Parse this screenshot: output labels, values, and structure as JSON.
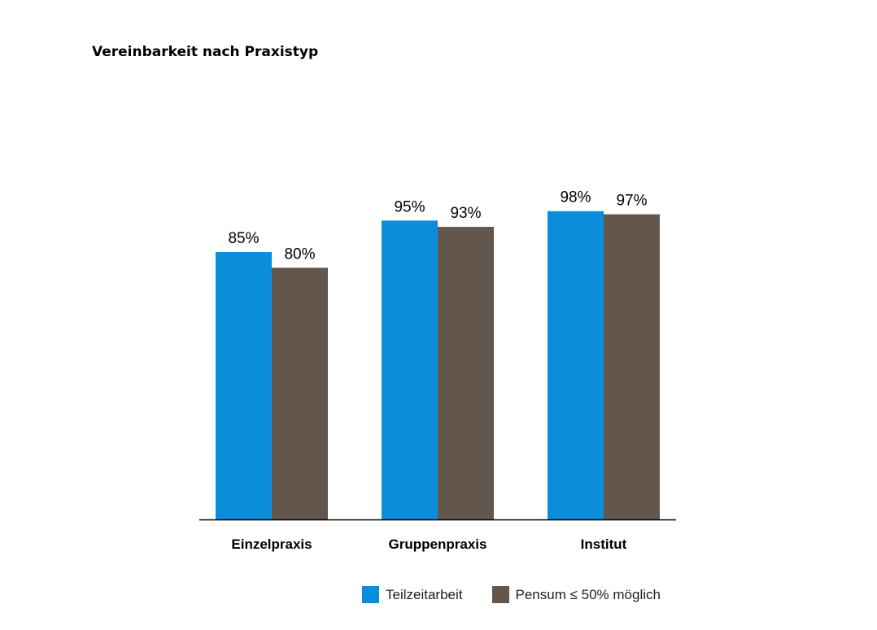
{
  "chart_data": {
    "type": "bar",
    "title": "Vereinbarkeit nach Praxistyp",
    "categories": [
      "Einzelpraxis",
      "Gruppenpraxis",
      "Institut"
    ],
    "series": [
      {
        "name": "Teilzeitarbeit",
        "values": [
          85,
          95,
          98
        ],
        "labels": [
          "85%",
          "95%",
          "98%"
        ],
        "color": "#0a8edc"
      },
      {
        "name": "Pensum ≤ 50% möglich",
        "values": [
          80,
          93,
          97
        ],
        "labels": [
          "80%",
          "93%",
          "97%"
        ],
        "color": "#63564d"
      }
    ],
    "ylim": [
      0,
      100
    ],
    "grid": false,
    "legend_position": "bottom"
  }
}
